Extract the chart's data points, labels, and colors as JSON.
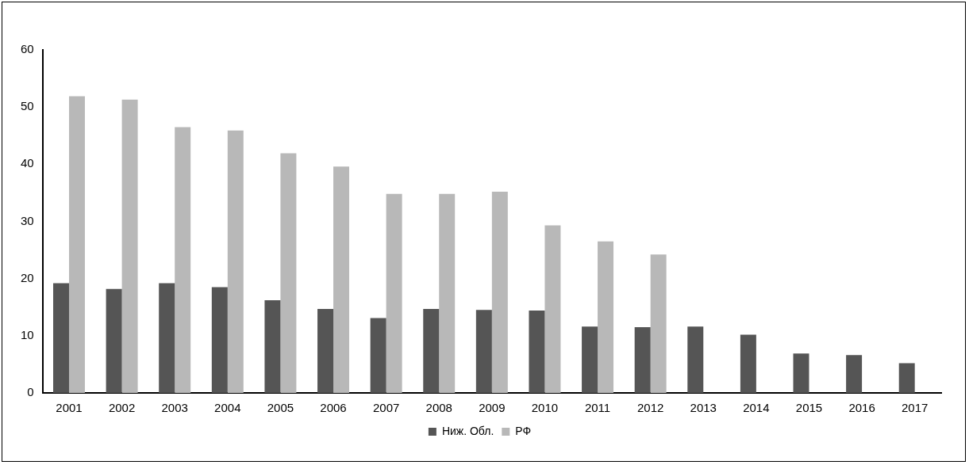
{
  "chart_data": {
    "type": "bar",
    "categories": [
      "2001",
      "2002",
      "2003",
      "2004",
      "2005",
      "2006",
      "2007",
      "2008",
      "2009",
      "2010",
      "2011",
      "2012",
      "2013",
      "2014",
      "2015",
      "2016",
      "2017"
    ],
    "series": [
      {
        "name": "Ниж. Обл.",
        "color": "#555555",
        "values": [
          19.2,
          18.2,
          19.2,
          18.5,
          16.2,
          14.7,
          13.1,
          14.7,
          14.5,
          14.4,
          11.6,
          11.5,
          11.6,
          10.2,
          6.9,
          6.6,
          5.2
        ]
      },
      {
        "name": "РФ",
        "color": "#b8b8b8",
        "values": [
          51.9,
          51.3,
          46.5,
          45.9,
          41.9,
          39.6,
          34.8,
          34.8,
          35.2,
          29.3,
          26.5,
          24.2,
          null,
          null,
          null,
          null,
          null
        ]
      }
    ],
    "ylim": [
      0,
      60
    ],
    "yticks": [
      0,
      10,
      20,
      30,
      40,
      50,
      60
    ],
    "grid": false,
    "legend": "bottom"
  }
}
